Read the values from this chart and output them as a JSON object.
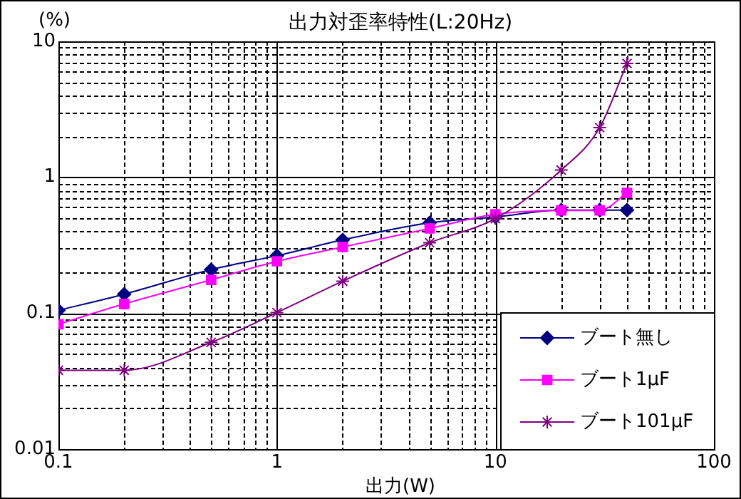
{
  "chart_data": {
    "type": "line",
    "title": "出力対歪率特性(L:20Hz)",
    "xlabel": "出力(W)",
    "ylabel": "(%)",
    "x": [
      0.1,
      0.2,
      0.5,
      1,
      2,
      5,
      10,
      20,
      30,
      40
    ],
    "series": [
      {
        "name": "ブート無し",
        "color": "#000080",
        "marker": "diamond",
        "values": [
          0.105,
          0.138,
          0.209,
          0.265,
          0.346,
          0.462,
          0.51,
          0.574,
          0.574,
          0.574
        ]
      },
      {
        "name": "ブート1μF",
        "color": "#ff00ff",
        "marker": "square",
        "values": [
          0.083,
          0.117,
          0.176,
          0.241,
          0.307,
          0.42,
          0.534,
          0.57,
          0.57,
          0.767
        ]
      },
      {
        "name": "ブート101μF",
        "color": "#800080",
        "marker": "cross",
        "values": [
          0.038,
          0.038,
          0.061,
          0.101,
          0.172,
          0.33,
          0.497,
          1.13,
          2.32,
          6.88
        ]
      }
    ],
    "log": "xy",
    "xlim": [
      0.1,
      100
    ],
    "ylim": [
      0.01,
      10
    ],
    "xticks": [
      0.1,
      {
        "value": 0.2,
        "label": null
      },
      {
        "value": 0.3,
        "label": null
      },
      {
        "value": 0.4,
        "label": null
      },
      {
        "value": 0.5,
        "label": null
      },
      {
        "value": 0.6,
        "label": null
      },
      {
        "value": 0.7,
        "label": null
      },
      {
        "value": 0.8,
        "label": null
      },
      {
        "value": 0.9,
        "label": null
      },
      1,
      {
        "value": 2,
        "label": null
      },
      {
        "value": 3,
        "label": null
      },
      {
        "value": 4,
        "label": null
      },
      {
        "value": 5,
        "label": null
      },
      {
        "value": 6,
        "label": null
      },
      {
        "value": 7,
        "label": null
      },
      {
        "value": 8,
        "label": null
      },
      {
        "value": 9,
        "label": null
      },
      10,
      {
        "value": 20,
        "label": null
      },
      {
        "value": 30,
        "label": null
      },
      {
        "value": 40,
        "label": null
      },
      {
        "value": 50,
        "label": null
      },
      {
        "value": 60,
        "label": null
      },
      {
        "value": 70,
        "label": null
      },
      {
        "value": 80,
        "label": null
      },
      {
        "value": 90,
        "label": null
      },
      100
    ],
    "yticks": [
      0.01,
      {
        "value": 0.02,
        "label": null
      },
      {
        "value": 0.03,
        "label": null
      },
      {
        "value": 0.04,
        "label": null
      },
      {
        "value": 0.05,
        "label": null
      },
      {
        "value": 0.06,
        "label": null
      },
      {
        "value": 0.07,
        "label": null
      },
      {
        "value": 0.08,
        "label": null
      },
      {
        "value": 0.09,
        "label": null
      },
      0.1,
      {
        "value": 0.2,
        "label": null
      },
      {
        "value": 0.3,
        "label": null
      },
      {
        "value": 0.4,
        "label": null
      },
      {
        "value": 0.5,
        "label": null
      },
      {
        "value": 0.6,
        "label": null
      },
      {
        "value": 0.7,
        "label": null
      },
      {
        "value": 0.8,
        "label": null
      },
      {
        "value": 0.9,
        "label": null
      },
      1,
      {
        "value": 2,
        "label": null
      },
      {
        "value": 3,
        "label": null
      },
      {
        "value": 4,
        "label": null
      },
      {
        "value": 5,
        "label": null
      },
      {
        "value": 6,
        "label": null
      },
      {
        "value": 7,
        "label": null
      },
      {
        "value": 8,
        "label": null
      },
      {
        "value": 9,
        "label": null
      },
      10
    ],
    "grid": true,
    "legend": "bottom right",
    "line_style": "solid"
  }
}
